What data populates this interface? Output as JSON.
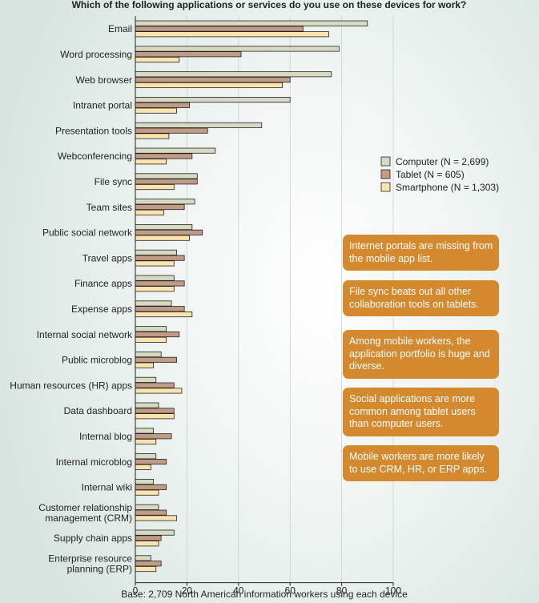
{
  "chart_data": {
    "type": "bar",
    "orientation": "horizontal",
    "title": "Which of the following applications or services do you use on these devices for work?",
    "categories": [
      "Email",
      "Word processing",
      "Web browser",
      "Intranet portal",
      "Presentation tools",
      "Webconferencing",
      "File sync",
      "Team sites",
      "Public social network",
      "Travel apps",
      "Finance apps",
      "Expense apps",
      "Internal social network",
      "Public microblog",
      "Human resources (HR) apps",
      "Data dashboard",
      "Internal blog",
      "Internal microblog",
      "Internal wiki",
      "Customer relationship management (CRM)",
      "Supply chain apps",
      "Enterprise resource planning (ERP)"
    ],
    "category_lines": [
      [
        "Email"
      ],
      [
        "Word processing"
      ],
      [
        "Web browser"
      ],
      [
        "Intranet portal"
      ],
      [
        "Presentation tools"
      ],
      [
        "Webconferencing"
      ],
      [
        "File sync"
      ],
      [
        "Team sites"
      ],
      [
        "Public social network"
      ],
      [
        "Travel apps"
      ],
      [
        "Finance apps"
      ],
      [
        "Expense apps"
      ],
      [
        "Internal social network"
      ],
      [
        "Public microblog"
      ],
      [
        "Human resources (HR) apps"
      ],
      [
        "Data dashboard"
      ],
      [
        "Internal blog"
      ],
      [
        "Internal microblog"
      ],
      [
        "Internal wiki"
      ],
      [
        "Customer relationship",
        "management (CRM)"
      ],
      [
        "Supply chain apps"
      ],
      [
        "Enterprise resource",
        "planning (ERP)"
      ]
    ],
    "series": [
      {
        "name": "Computer (N = 2,699)",
        "color": "#d7d9c2",
        "values": [
          90,
          79,
          76,
          60,
          49,
          31,
          24,
          23,
          22,
          16,
          15,
          14,
          12,
          10,
          8,
          9,
          7,
          8,
          7,
          9,
          15,
          6
        ]
      },
      {
        "name": "Tablet (N = 605)",
        "color": "#c19b85",
        "values": [
          65,
          41,
          60,
          21,
          28,
          22,
          24,
          19,
          26,
          19,
          19,
          19,
          17,
          16,
          15,
          15,
          14,
          12,
          12,
          12,
          10,
          10
        ]
      },
      {
        "name": "Smartphone (N = 1,303)",
        "color": "#fae3ad",
        "values": [
          75,
          17,
          57,
          16,
          13,
          12,
          15,
          11,
          21,
          15,
          15,
          22,
          12,
          7,
          18,
          15,
          8,
          6,
          9,
          16,
          9,
          8
        ]
      }
    ],
    "x_ticks": [
      "0",
      "20",
      "40",
      "60",
      "80",
      "100"
    ],
    "xlim": [
      0,
      100
    ],
    "legend_position": "right",
    "caption": "Base: 2,709 North American information workers using each device"
  },
  "annotations": [
    "Internet portals are missing from the mobile app list.",
    "File sync beats out all other collaboration tools on tablets.",
    "Among mobile workers, the application portfolio is huge and diverse.",
    "Social applications are more common among tablet users than computer users.",
    "Mobile workers are more likely to use CRM, HR, or ERP apps."
  ]
}
